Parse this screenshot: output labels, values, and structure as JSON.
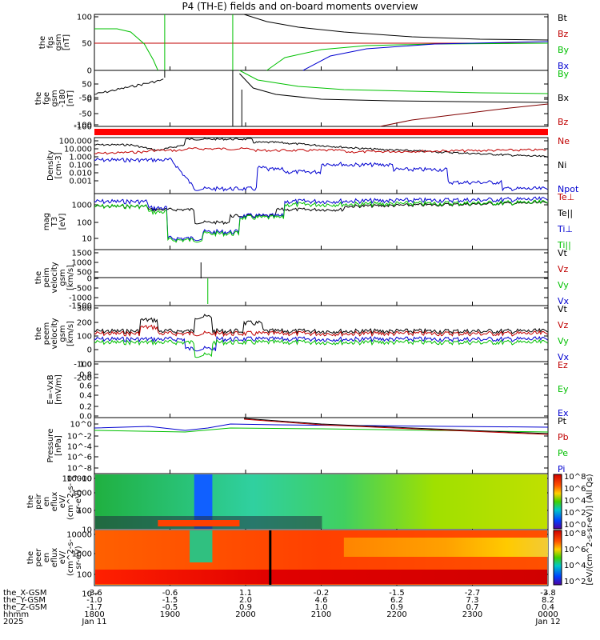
{
  "title": "P4 (TH-E) fields and on-board moments overview",
  "chart_data": {
    "type": "line",
    "x_range": [
      "1800",
      "0000"
    ],
    "time_ticks": [
      "1800",
      "1900",
      "2000",
      "2100",
      "2200",
      "2300",
      "0000"
    ],
    "ephemeris": {
      "row_labels": [
        "the_X-GSM",
        "the_Y-GSM",
        "the_Z-GSM",
        "hhmm",
        "2025"
      ],
      "columns": [
        [
          "-3.6",
          "-1.0",
          "-1.7",
          "1800",
          "Jan 11"
        ],
        [
          "-0.6",
          "-1.5",
          "-0.5",
          "1900",
          ""
        ],
        [
          "1.1",
          "2.0",
          "0.9",
          "2000",
          ""
        ],
        [
          "-0.2",
          "4.6",
          "1.0",
          "2100",
          ""
        ],
        [
          "-1.5",
          "6.2",
          "0.9",
          "2200",
          ""
        ],
        [
          "-2.7",
          "7.3",
          "0.7",
          "2300",
          ""
        ],
        [
          "-3.8",
          "8.2",
          "0.4",
          "0000",
          "Jan 12"
        ]
      ]
    },
    "panels": [
      {
        "id": "fgs",
        "ylabel": [
          "the",
          "fgs",
          "gsm",
          "[nT]"
        ],
        "ylim": [
          -100,
          100
        ],
        "yticks": [
          "100",
          "50",
          "0",
          "-50",
          "-100"
        ],
        "legend": [
          {
            "name": "Bt",
            "color": "#000000"
          },
          {
            "name": "Bz",
            "color": "#c00000"
          },
          {
            "name": "By",
            "color": "#00c000"
          },
          {
            "name": "Bx",
            "color": "#0000d0"
          }
        ]
      },
      {
        "id": "fge",
        "ylabel": [
          "the",
          "fge",
          "gsm",
          "-180",
          "[nT]"
        ],
        "ylim": [
          -120,
          80
        ],
        "yticks": [
          "50",
          "0",
          "-50",
          "-100"
        ],
        "legend": [
          {
            "name": "By",
            "color": "#00c000"
          },
          {
            "name": "Bx",
            "color": "#000000"
          },
          {
            "name": "Bz",
            "color": "#c00000"
          }
        ]
      },
      {
        "id": "density",
        "ylabel": [
          "Density",
          "[cm-3]"
        ],
        "scale": "log",
        "yticks": [
          "100.000",
          "10.000",
          "1.000",
          "0.100",
          "0.010",
          "0.001"
        ],
        "legend": [
          {
            "name": "Ne",
            "color": "#c00000"
          },
          {
            "name": "Ni",
            "color": "#000000"
          },
          {
            "name": "Npot",
            "color": "#0000d0"
          }
        ]
      },
      {
        "id": "temperature",
        "ylabel": [
          "mag",
          "T3",
          "[eV]"
        ],
        "scale": "log",
        "yticks": [
          "1000",
          "100",
          "10"
        ],
        "legend": [
          {
            "name": "Te⊥",
            "color": "#c00000"
          },
          {
            "name": "Te||",
            "color": "#000000"
          },
          {
            "name": "Ti⊥",
            "color": "#0000d0"
          },
          {
            "name": "Ti||",
            "color": "#00c000"
          }
        ]
      },
      {
        "id": "peim",
        "ylabel": [
          "the",
          "peim",
          "velocity",
          "gsm",
          "[km/s]"
        ],
        "ylim": [
          -1500,
          1500
        ],
        "yticks": [
          "1500",
          "1000",
          "500",
          "0",
          "-500",
          "-1000",
          "-1500"
        ],
        "legend": [
          {
            "name": "Vt",
            "color": "#000000"
          },
          {
            "name": "Vz",
            "color": "#c00000"
          },
          {
            "name": "Vy",
            "color": "#00c000"
          },
          {
            "name": "Vx",
            "color": "#0000d0"
          }
        ]
      },
      {
        "id": "peem",
        "ylabel": [
          "the",
          "peem",
          "velocity",
          "gsm",
          "[km/s]"
        ],
        "ylim": [
          -250,
          300
        ],
        "yticks": [
          "300",
          "200",
          "100",
          "0",
          "-100",
          "-200"
        ],
        "legend": [
          {
            "name": "Vt",
            "color": "#000000"
          },
          {
            "name": "Vz",
            "color": "#c00000"
          },
          {
            "name": "Vy",
            "color": "#00c000"
          },
          {
            "name": "Vx",
            "color": "#0000d0"
          }
        ]
      },
      {
        "id": "efield",
        "ylabel": [
          "E=-VxB",
          "[mV/m]"
        ],
        "ylim": [
          0,
          1
        ],
        "yticks": [
          "1.0",
          "0.8",
          "0.6",
          "0.4",
          "0.2",
          "0.0"
        ],
        "legend": [
          {
            "name": "Ez",
            "color": "#c00000"
          },
          {
            "name": "Ey",
            "color": "#00c000"
          },
          {
            "name": "Ex",
            "color": "#0000d0"
          }
        ]
      },
      {
        "id": "pressure",
        "ylabel": [
          "Pressure",
          "[nPa]"
        ],
        "scale": "log",
        "yticks": [
          "10^0",
          "10^-2",
          "10^-4",
          "10^-6",
          "10^-8",
          "10^-10"
        ],
        "legend": [
          {
            "name": "Pt",
            "color": "#000000"
          },
          {
            "name": "Pb",
            "color": "#c00000"
          },
          {
            "name": "Pe",
            "color": "#00c000"
          },
          {
            "name": "Pi",
            "color": "#0000d0"
          }
        ]
      },
      {
        "id": "peir",
        "ylabel": [
          "the",
          "peir",
          "en",
          "eflux",
          "eV/",
          "(cm^2-s-",
          "sr-eV)"
        ],
        "scale": "log",
        "yticks": [
          "10000",
          "1000",
          "100",
          "10"
        ]
      },
      {
        "id": "peer",
        "ylabel": [
          "the",
          "peer",
          "en",
          "eflux",
          "eV/",
          "(cm^2-s-",
          "sr-eV)"
        ],
        "scale": "log",
        "yticks": [
          "10000",
          "1000",
          "100",
          "10"
        ]
      }
    ],
    "colorbar": {
      "label": "[eV/(cm^2-s-sr-eV)] (All Qs)",
      "peir_ticks": [
        "10^8",
        "10^6",
        "10^4",
        "10^2",
        "10^0"
      ],
      "peer_ticks": [
        "10^8",
        "10^6",
        "10^4",
        "10^2"
      ]
    }
  }
}
